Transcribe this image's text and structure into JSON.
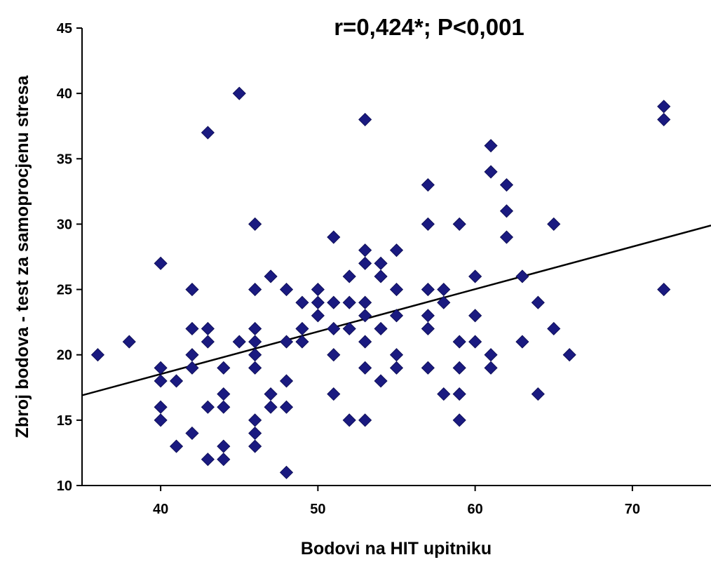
{
  "chart_data": {
    "type": "scatter",
    "title": "r=0,424*; P<0,001",
    "xlabel": "Bodovi na HIT upitniku",
    "ylabel": "Zbroj bodova - test za samoprocjenu stresa",
    "xlim": [
      35,
      75
    ],
    "ylim": [
      10,
      45
    ],
    "xticks": [
      40,
      50,
      60,
      70
    ],
    "yticks": [
      10,
      15,
      20,
      25,
      30,
      35,
      40,
      45
    ],
    "grid": false,
    "marker": "diamond",
    "marker_color": "#1a1a80",
    "series": [
      {
        "points": [
          [
            36,
            20
          ],
          [
            38,
            21
          ],
          [
            40,
            27
          ],
          [
            40,
            19
          ],
          [
            40,
            18
          ],
          [
            40,
            16
          ],
          [
            40,
            15
          ],
          [
            41,
            18
          ],
          [
            41,
            13
          ],
          [
            42,
            25
          ],
          [
            42,
            22
          ],
          [
            42,
            20
          ],
          [
            42,
            19
          ],
          [
            42,
            14
          ],
          [
            43,
            37
          ],
          [
            43,
            22
          ],
          [
            43,
            21
          ],
          [
            43,
            16
          ],
          [
            43,
            12
          ],
          [
            44,
            19
          ],
          [
            44,
            17
          ],
          [
            44,
            16
          ],
          [
            44,
            13
          ],
          [
            44,
            12
          ],
          [
            45,
            40
          ],
          [
            45,
            21
          ],
          [
            46,
            30
          ],
          [
            46,
            25
          ],
          [
            46,
            22
          ],
          [
            46,
            21
          ],
          [
            46,
            20
          ],
          [
            46,
            19
          ],
          [
            46,
            15
          ],
          [
            46,
            14
          ],
          [
            46,
            13
          ],
          [
            47,
            26
          ],
          [
            47,
            17
          ],
          [
            47,
            16
          ],
          [
            48,
            25
          ],
          [
            48,
            21
          ],
          [
            48,
            18
          ],
          [
            48,
            16
          ],
          [
            48,
            11
          ],
          [
            49,
            24
          ],
          [
            49,
            22
          ],
          [
            49,
            21
          ],
          [
            50,
            25
          ],
          [
            50,
            24
          ],
          [
            50,
            23
          ],
          [
            51,
            29
          ],
          [
            51,
            24
          ],
          [
            51,
            22
          ],
          [
            51,
            20
          ],
          [
            51,
            17
          ],
          [
            52,
            26
          ],
          [
            52,
            24
          ],
          [
            52,
            22
          ],
          [
            52,
            15
          ],
          [
            53,
            38
          ],
          [
            53,
            28
          ],
          [
            53,
            27
          ],
          [
            53,
            24
          ],
          [
            53,
            23
          ],
          [
            53,
            21
          ],
          [
            53,
            19
          ],
          [
            53,
            15
          ],
          [
            54,
            27
          ],
          [
            54,
            26
          ],
          [
            54,
            22
          ],
          [
            54,
            18
          ],
          [
            55,
            28
          ],
          [
            55,
            25
          ],
          [
            55,
            23
          ],
          [
            55,
            20
          ],
          [
            55,
            19
          ],
          [
            57,
            33
          ],
          [
            57,
            30
          ],
          [
            57,
            25
          ],
          [
            57,
            23
          ],
          [
            57,
            22
          ],
          [
            57,
            19
          ],
          [
            58,
            25
          ],
          [
            58,
            24
          ],
          [
            58,
            17
          ],
          [
            59,
            30
          ],
          [
            59,
            21
          ],
          [
            59,
            19
          ],
          [
            59,
            17
          ],
          [
            59,
            15
          ],
          [
            60,
            26
          ],
          [
            60,
            23
          ],
          [
            60,
            21
          ],
          [
            61,
            36
          ],
          [
            61,
            34
          ],
          [
            61,
            20
          ],
          [
            61,
            19
          ],
          [
            62,
            33
          ],
          [
            62,
            31
          ],
          [
            62,
            29
          ],
          [
            63,
            26
          ],
          [
            63,
            21
          ],
          [
            64,
            24
          ],
          [
            64,
            17
          ],
          [
            65,
            30
          ],
          [
            65,
            22
          ],
          [
            66,
            20
          ],
          [
            72,
            39
          ],
          [
            72,
            38
          ],
          [
            72,
            25
          ]
        ]
      }
    ],
    "trendline": {
      "x": [
        35,
        75
      ],
      "y": [
        16.9,
        29.9
      ],
      "color": "#000000"
    }
  }
}
